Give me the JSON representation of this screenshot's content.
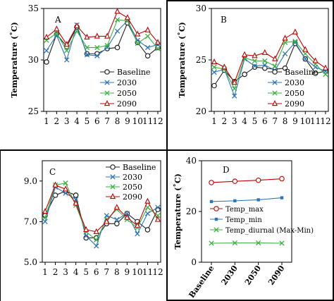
{
  "chart_data": [
    {
      "type": "line",
      "panel_label": "A",
      "ylabel": "Temperature (˚C)",
      "xlabel": "",
      "ylim": [
        25,
        35
      ],
      "yticks": [
        25,
        30,
        35
      ],
      "x": [
        "1",
        "2",
        "3",
        "4",
        "5",
        "6",
        "7",
        "8",
        "9",
        "10",
        "11",
        "12"
      ],
      "legend_position": "lower-right",
      "show_legend": true,
      "series": [
        {
          "name": "Baseline",
          "color": "#222222",
          "marker": "circle",
          "values": [
            29.8,
            32.5,
            31.3,
            33.2,
            30.6,
            30.6,
            31.1,
            31.2,
            33.6,
            31.7,
            30.4,
            31.2
          ]
        },
        {
          "name": "2030",
          "color": "#2e75b6",
          "marker": "x",
          "values": [
            30.9,
            32.4,
            30.0,
            33.4,
            30.5,
            30.4,
            31.2,
            32.8,
            33.8,
            31.9,
            31.2,
            31.5
          ]
        },
        {
          "name": "2050",
          "color": "#3cb043",
          "marker": "x",
          "values": [
            31.9,
            32.6,
            30.9,
            32.8,
            31.2,
            31.2,
            31.4,
            33.9,
            33.8,
            31.6,
            32.3,
            31.1
          ]
        },
        {
          "name": "2090",
          "color": "#c00000",
          "marker": "triangle",
          "values": [
            32.2,
            33.0,
            31.5,
            33.3,
            32.2,
            32.3,
            32.3,
            34.7,
            34.1,
            32.5,
            32.9,
            31.7
          ]
        }
      ]
    },
    {
      "type": "line",
      "panel_label": "B",
      "ylabel": "Temperature (˚C)",
      "xlabel": "",
      "ylim": [
        20,
        30
      ],
      "yticks": [
        20,
        25,
        30
      ],
      "x": [
        "1",
        "2",
        "3",
        "4",
        "5",
        "6",
        "7",
        "8",
        "9",
        "10",
        "11",
        "12"
      ],
      "legend_position": "lower-right",
      "show_legend": true,
      "series": [
        {
          "name": "Baseline",
          "color": "#222222",
          "marker": "circle",
          "values": [
            22.5,
            24.0,
            22.9,
            23.6,
            24.3,
            24.2,
            24.1,
            24.2,
            26.6,
            25.1,
            23.7,
            23.9
          ]
        },
        {
          "name": "2030",
          "color": "#2e75b6",
          "marker": "x",
          "values": [
            23.8,
            24.1,
            21.5,
            25.1,
            24.4,
            24.5,
            24.0,
            25.6,
            26.7,
            25.1,
            24.3,
            23.9
          ]
        },
        {
          "name": "2050",
          "color": "#3cb043",
          "marker": "x",
          "values": [
            24.3,
            24.1,
            22.2,
            25.2,
            24.9,
            24.9,
            24.4,
            26.7,
            26.8,
            25.6,
            24.6,
            23.6
          ]
        },
        {
          "name": "2090",
          "color": "#c00000",
          "marker": "triangle",
          "values": [
            24.8,
            24.3,
            22.8,
            25.5,
            25.4,
            25.7,
            25.1,
            27.1,
            27.7,
            26.0,
            24.9,
            24.2
          ]
        }
      ]
    },
    {
      "type": "line",
      "panel_label": "C",
      "ylabel": "",
      "xlabel": "",
      "ylim": [
        5.0,
        10.0
      ],
      "yticks": [
        5.0,
        7.0,
        9.0
      ],
      "yticklabels": [
        "5.0",
        "7.0",
        "9.0"
      ],
      "x": [
        "1",
        "2",
        "3",
        "4",
        "5",
        "6",
        "7",
        "8",
        "9",
        "10",
        "11",
        "12"
      ],
      "legend_position": "top-right",
      "show_legend": true,
      "series": [
        {
          "name": "Baseline",
          "color": "#222222",
          "marker": "circle",
          "values": [
            7.3,
            8.3,
            8.5,
            8.3,
            6.2,
            6.2,
            6.9,
            6.9,
            7.4,
            7.0,
            6.6,
            7.6
          ]
        },
        {
          "name": "2030",
          "color": "#2e75b6",
          "marker": "x",
          "values": [
            7.0,
            8.7,
            8.4,
            8.1,
            6.3,
            5.8,
            7.3,
            7.1,
            7.4,
            6.4,
            7.4,
            7.7
          ]
        },
        {
          "name": "2050",
          "color": "#3cb043",
          "marker": "x",
          "values": [
            7.2,
            8.8,
            8.9,
            7.8,
            6.5,
            6.1,
            7.1,
            7.6,
            7.1,
            6.7,
            7.7,
            7.3
          ]
        },
        {
          "name": "2090",
          "color": "#c00000",
          "marker": "triangle",
          "values": [
            7.5,
            8.8,
            8.6,
            7.9,
            6.6,
            6.5,
            7.0,
            7.7,
            7.2,
            6.8,
            8.0,
            7.1
          ]
        }
      ]
    },
    {
      "type": "line",
      "panel_label": "D",
      "ylabel": "Temperature (˚C)",
      "xlabel": "",
      "ylim": [
        0,
        40
      ],
      "yticks": [
        0,
        20,
        40
      ],
      "x": [
        "Baseline",
        "2030",
        "2050",
        "2090"
      ],
      "legend_position": "middle-right",
      "show_legend": true,
      "series": [
        {
          "name": "Temp_max",
          "color": "#c00000",
          "marker": "circle-open",
          "values": [
            31.4,
            31.9,
            32.3,
            32.9
          ]
        },
        {
          "name": "Temp_min",
          "color": "#2e75b6",
          "marker": "square",
          "values": [
            23.9,
            24.2,
            24.6,
            25.4
          ]
        },
        {
          "name": "Temp_diurnal  (Max-Min)",
          "color": "#3cb043",
          "marker": "x",
          "values": [
            7.5,
            7.6,
            7.6,
            7.5
          ]
        }
      ]
    }
  ]
}
